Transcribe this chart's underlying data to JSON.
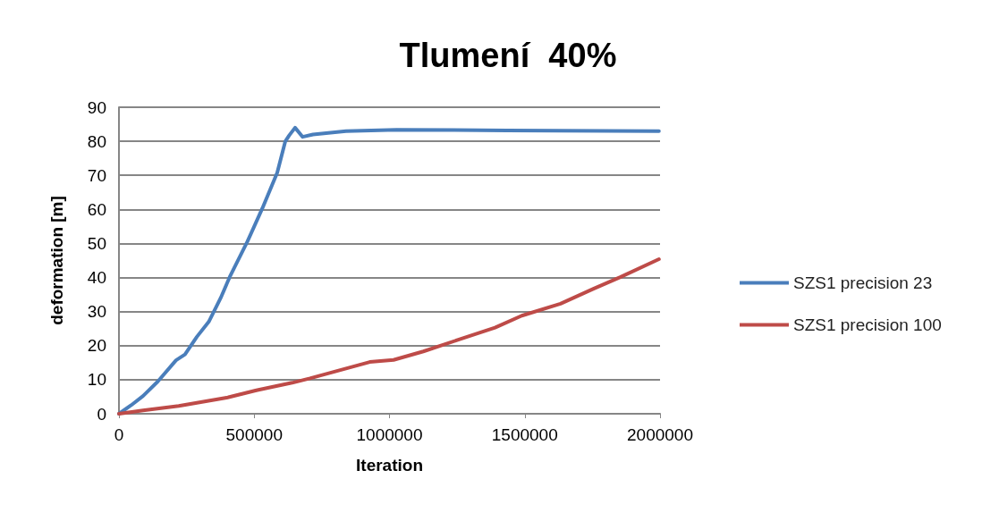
{
  "chart_data": {
    "type": "line",
    "title": "Tlumení  40%",
    "xlabel": "Iteration",
    "ylabel": "deformation [m]",
    "xlim": [
      0,
      2000000
    ],
    "xticks": [
      0,
      500000,
      1000000,
      1500000,
      2000000
    ],
    "ylim": [
      0,
      90
    ],
    "yticks": [
      0,
      10,
      20,
      30,
      40,
      50,
      60,
      70,
      80,
      90
    ],
    "grid": "y",
    "legend": "right",
    "marker": "none",
    "line_style": "solid",
    "series": [
      {
        "name": "SZS1 precision 23",
        "color": "#4a7ebb",
        "x": [
          0,
          45000,
          89000,
          144000,
          211000,
          244000,
          288000,
          332000,
          376000,
          409000,
          475000,
          530000,
          585000,
          615000,
          629000,
          651000,
          679000,
          717000,
          839000,
          1026000,
          1434000,
          1996000
        ],
        "values": [
          0,
          2.5,
          5.2,
          9.5,
          15.7,
          17.4,
          22.6,
          27,
          34,
          40.1,
          50.6,
          60.3,
          70.8,
          80,
          81.7,
          84,
          81.3,
          82,
          83,
          83.4,
          83.2,
          83
        ]
      },
      {
        "name": "SZS1 precision 100",
        "color": "#be4b48",
        "x": [
          0,
          89000,
          221000,
          398000,
          508000,
          640000,
          706000,
          927000,
          1015000,
          1125000,
          1257000,
          1390000,
          1489000,
          1632000,
          1754000,
          1853000,
          1996000
        ],
        "values": [
          0,
          1,
          2.3,
          4.7,
          6.9,
          9.1,
          10.4,
          15.2,
          15.8,
          18.3,
          21.8,
          25.3,
          28.8,
          32.3,
          36.7,
          40.1,
          45.4
        ]
      }
    ]
  }
}
